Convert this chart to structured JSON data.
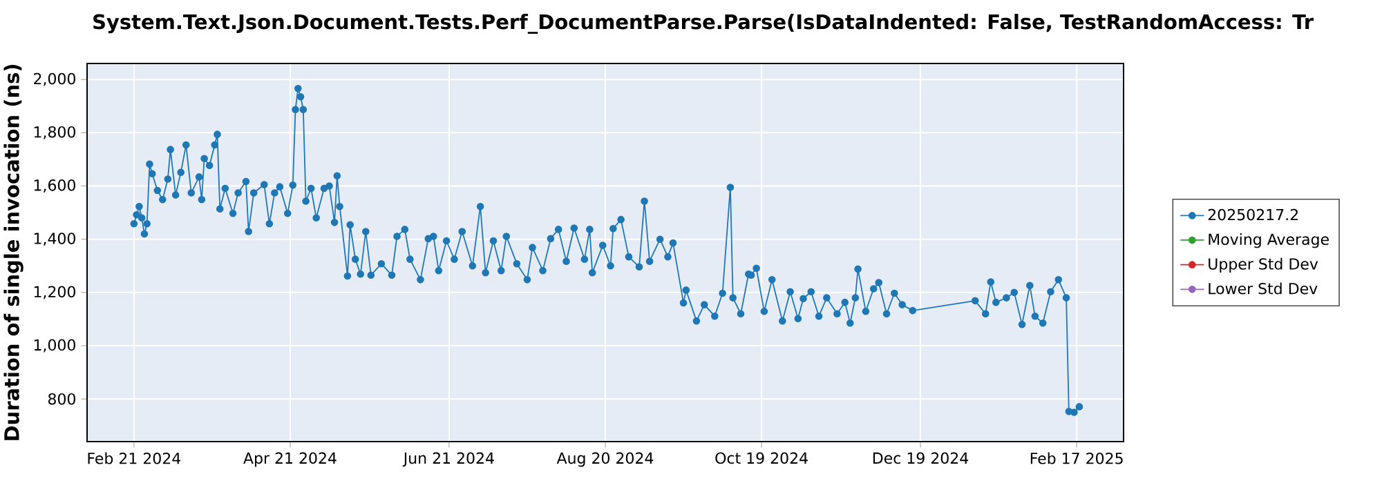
{
  "chart_data": {
    "type": "line",
    "title": "System.Text.Json.Document.Tests.Perf_DocumentParse.Parse(IsDataIndented: False, TestRandomAccess: Tr",
    "ylabel": "Duration of single invocation (ns)",
    "xlim": [
      "2024-02-03",
      "2025-03-07"
    ],
    "xticks": [
      {
        "value": "2024-02-21",
        "label": "Feb 21 2024"
      },
      {
        "value": "2024-04-21",
        "label": "Apr 21 2024"
      },
      {
        "value": "2024-06-21",
        "label": "Jun 21 2024"
      },
      {
        "value": "2024-08-20",
        "label": "Aug 20 2024"
      },
      {
        "value": "2024-10-19",
        "label": "Oct 19 2024"
      },
      {
        "value": "2024-12-19",
        "label": "Dec 19 2024"
      },
      {
        "value": "2025-02-17",
        "label": "Feb 17 2025"
      }
    ],
    "ylim": [
      640,
      2060
    ],
    "yticks": [
      800,
      {
        "value": 1000,
        "label": "1,000"
      },
      {
        "value": 1200,
        "label": "1,200"
      },
      {
        "value": 1400,
        "label": "1,400"
      },
      {
        "value": 1600,
        "label": "1,600"
      },
      {
        "value": 1800,
        "label": "1,800"
      },
      {
        "value": 2000,
        "label": "2,000"
      }
    ],
    "grid": true,
    "legend": "right",
    "marker": "circle",
    "series": [
      {
        "name": "20250217.2",
        "color": "#1f77b4",
        "x": [
          "2024-02-21",
          "2024-02-22",
          "2024-02-23",
          "2024-02-24",
          "2024-02-25",
          "2024-02-26",
          "2024-02-27",
          "2024-02-28",
          "2024-03-01",
          "2024-03-03",
          "2024-03-05",
          "2024-03-06",
          "2024-03-08",
          "2024-03-10",
          "2024-03-12",
          "2024-03-14",
          "2024-03-17",
          "2024-03-18",
          "2024-03-19",
          "2024-03-21",
          "2024-03-23",
          "2024-03-24",
          "2024-03-25",
          "2024-03-27",
          "2024-03-30",
          "2024-04-01",
          "2024-04-04",
          "2024-04-05",
          "2024-04-07",
          "2024-04-11",
          "2024-04-13",
          "2024-04-15",
          "2024-04-17",
          "2024-04-20",
          "2024-04-22",
          "2024-04-23",
          "2024-04-24",
          "2024-04-25",
          "2024-04-26",
          "2024-04-27",
          "2024-04-29",
          "2024-05-01",
          "2024-05-04",
          "2024-05-06",
          "2024-05-08",
          "2024-05-09",
          "2024-05-10",
          "2024-05-13",
          "2024-05-14",
          "2024-05-16",
          "2024-05-18",
          "2024-05-20",
          "2024-05-22",
          "2024-05-26",
          "2024-05-30",
          "2024-06-01",
          "2024-06-04",
          "2024-06-06",
          "2024-06-10",
          "2024-06-13",
          "2024-06-15",
          "2024-06-17",
          "2024-06-20",
          "2024-06-23",
          "2024-06-26",
          "2024-06-30",
          "2024-07-03",
          "2024-07-05",
          "2024-07-08",
          "2024-07-11",
          "2024-07-13",
          "2024-07-17",
          "2024-07-21",
          "2024-07-23",
          "2024-07-27",
          "2024-07-30",
          "2024-08-02",
          "2024-08-05",
          "2024-08-08",
          "2024-08-12",
          "2024-08-14",
          "2024-08-15",
          "2024-08-19",
          "2024-08-22",
          "2024-08-23",
          "2024-08-26",
          "2024-08-29",
          "2024-09-02",
          "2024-09-04",
          "2024-09-06",
          "2024-09-10",
          "2024-09-13",
          "2024-09-15",
          "2024-09-19",
          "2024-09-20",
          "2024-09-24",
          "2024-09-27",
          "2024-10-01",
          "2024-10-04",
          "2024-10-07",
          "2024-10-08",
          "2024-10-11",
          "2024-10-14",
          "2024-10-15",
          "2024-10-17",
          "2024-10-20",
          "2024-10-23",
          "2024-10-27",
          "2024-10-30",
          "2024-11-02",
          "2024-11-04",
          "2024-11-07",
          "2024-11-10",
          "2024-11-13",
          "2024-11-17",
          "2024-11-20",
          "2024-11-22",
          "2024-11-24",
          "2024-11-25",
          "2024-11-28",
          "2024-12-01",
          "2024-12-03",
          "2024-12-06",
          "2024-12-09",
          "2024-12-12",
          "2024-12-16",
          "2025-01-09",
          "2025-01-13",
          "2025-01-15",
          "2025-01-17",
          "2025-01-21",
          "2025-01-24",
          "2025-01-27",
          "2025-01-30",
          "2025-02-01",
          "2025-02-04",
          "2025-02-07",
          "2025-02-10",
          "2025-02-13",
          "2025-02-14",
          "2025-02-16",
          "2025-02-18"
        ],
        "values": [
          1458,
          1492,
          1523,
          1480,
          1420,
          1458,
          1682,
          1646,
          1583,
          1549,
          1626,
          1737,
          1566,
          1651,
          1754,
          1574,
          1634,
          1549,
          1703,
          1677,
          1754,
          1794,
          1514,
          1591,
          1497,
          1574,
          1617,
          1429,
          1574,
          1605,
          1458,
          1574,
          1597,
          1497,
          1603,
          1887,
          1966,
          1935,
          1887,
          1543,
          1591,
          1480,
          1591,
          1600,
          1463,
          1638,
          1523,
          1262,
          1454,
          1325,
          1269,
          1429,
          1265,
          1308,
          1265,
          1411,
          1437,
          1325,
          1248,
          1402,
          1411,
          1282,
          1394,
          1325,
          1429,
          1300,
          1523,
          1274,
          1394,
          1282,
          1411,
          1308,
          1248,
          1369,
          1282,
          1402,
          1437,
          1317,
          1442,
          1325,
          1437,
          1274,
          1377,
          1300,
          1440,
          1474,
          1334,
          1296,
          1543,
          1317,
          1400,
          1334,
          1386,
          1161,
          1209,
          1093,
          1154,
          1111,
          1197,
          1595,
          1180,
          1120,
          1269,
          1265,
          1291,
          1129,
          1248,
          1093,
          1203,
          1102,
          1177,
          1203,
          1111,
          1180,
          1120,
          1163,
          1085,
          1180,
          1288,
          1129,
          1214,
          1237,
          1120,
          1197,
          1154,
          1132,
          1169,
          1120,
          1240,
          1163,
          1180,
          1200,
          1080,
          1226,
          1111,
          1085,
          1203,
          1248,
          1180,
          753,
          750,
          771
        ]
      },
      {
        "name": "Moving Average",
        "color": "#2ca02c"
      },
      {
        "name": "Upper Std Dev",
        "color": "#d62728"
      },
      {
        "name": "Lower Std Dev",
        "color": "#9467bd"
      }
    ]
  }
}
